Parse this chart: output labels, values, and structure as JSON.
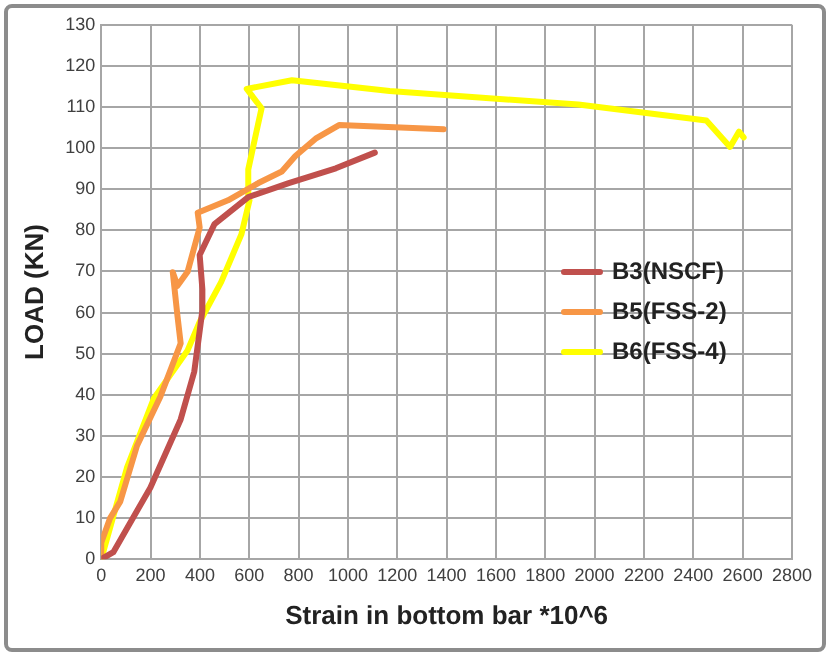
{
  "chart_data": {
    "type": "line",
    "xlabel": "Strain in bottom bar *10^6",
    "ylabel": "LOAD (KN)",
    "xlim": [
      0,
      2800
    ],
    "xticks": [
      0,
      200,
      400,
      600,
      800,
      1000,
      1200,
      1400,
      1600,
      1800,
      2000,
      2200,
      2400,
      2600,
      2800
    ],
    "ylim": [
      0,
      130
    ],
    "yticks": [
      0,
      10,
      20,
      30,
      40,
      50,
      60,
      70,
      80,
      90,
      100,
      110,
      120,
      130
    ],
    "grid": true,
    "legend": "right",
    "marker": "none",
    "line_style": "solid",
    "series": [
      {
        "name": "B3(NSCF)",
        "color": "#c0504d",
        "x": [
          0,
          49,
          199,
          322,
          377,
          410,
          410,
          399,
          459,
          596,
          760,
          951,
          1109
        ],
        "values": [
          0,
          1.7,
          17.4,
          34,
          45.6,
          60.5,
          65.7,
          74,
          81.5,
          88.1,
          91.5,
          95.1,
          98.9
        ]
      },
      {
        "name": "B5(FSS-2)",
        "color": "#f79646",
        "x": [
          0,
          0,
          36,
          77,
          145,
          240,
          322,
          309,
          290,
          309,
          350,
          399,
          391,
          514,
          637,
          732,
          787,
          869,
          964,
          1388
        ],
        "values": [
          0,
          4,
          10,
          14,
          27.6,
          39.6,
          52.5,
          59.2,
          69.8,
          66.5,
          69.9,
          80.7,
          84.3,
          87.3,
          91.5,
          94.3,
          98.1,
          102.3,
          105.6,
          104.6
        ]
      },
      {
        "name": "B6(FSS-4)",
        "color": "#ffff00",
        "x": [
          0,
          104,
          213,
          350,
          399,
          486,
          568,
          601,
          596,
          623,
          650,
          590,
          773,
          1169,
          1934,
          2453,
          2549,
          2585,
          2604
        ],
        "values": [
          0,
          22.2,
          39.1,
          50.8,
          57.7,
          67.4,
          79,
          87.3,
          94.8,
          102.3,
          109.7,
          114.4,
          116.5,
          113.9,
          110.6,
          106.7,
          100.3,
          104,
          102.6
        ]
      }
    ]
  }
}
